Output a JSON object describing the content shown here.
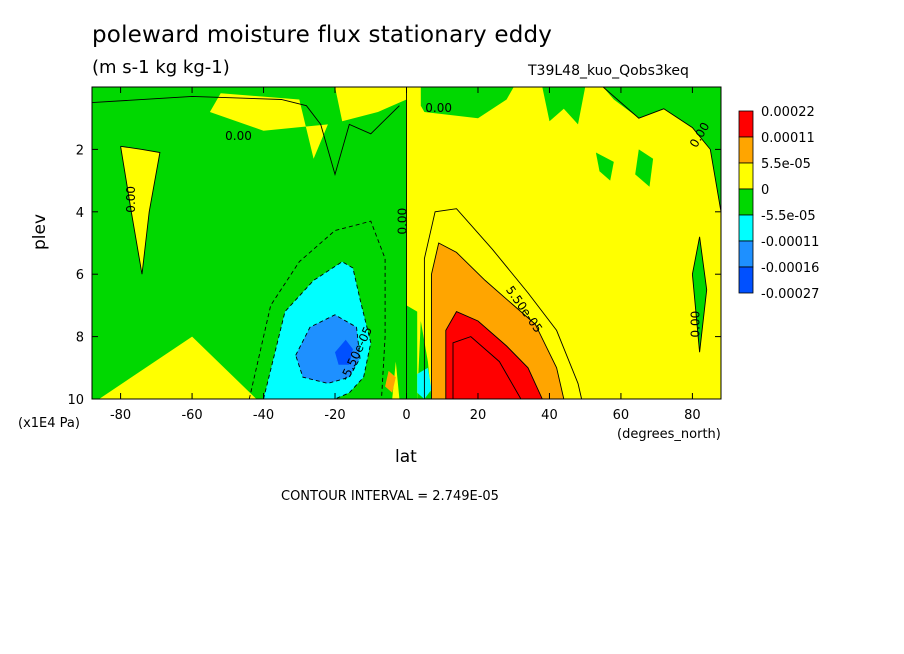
{
  "title": "poleward moisture flux stationary eddy",
  "units": "(m s-1 kg kg-1)",
  "run_name": "T39L48_kuo_Qobs3keq",
  "contour_interval": "CONTOUR INTERVAL = 2.749E-05",
  "chart_data": {
    "type": "heatmap",
    "title": "poleward moisture flux stationary eddy",
    "xlabel": "lat",
    "ylabel": "plev",
    "x_units": "(degrees_north)",
    "y_units": "(x1E4 Pa)",
    "xlim": [
      -88,
      88
    ],
    "ylim": [
      10,
      0
    ],
    "x_ticks": [
      -80,
      -60,
      -40,
      -20,
      0,
      20,
      40,
      60,
      80
    ],
    "x_tick_labels": [
      "-80",
      "-60",
      "-40",
      "-20",
      "0",
      "20",
      "40",
      "60",
      "80"
    ],
    "y_ticks": [
      2,
      4,
      6,
      8,
      10
    ],
    "y_tick_labels": [
      "2",
      "4",
      "6",
      "8",
      "10"
    ],
    "colorbar": {
      "labels": [
        "0.00022",
        "0.00011",
        "5.5e-05",
        "0",
        "-5.5e-05",
        "-0.00011",
        "-0.00016",
        "-0.00027"
      ],
      "colors": [
        "#ff0000",
        "#ffa500",
        "#ffff00",
        "#00d800",
        "#00ffff",
        "#1e90ff",
        "#0050ff"
      ]
    },
    "contour_labels": [
      {
        "text": "0.00",
        "lat": -47,
        "plev": 1.7,
        "angle": 0
      },
      {
        "text": "0.00",
        "lat": 9,
        "plev": 0.8,
        "angle": 0
      },
      {
        "text": "0.00",
        "lat": -76,
        "plev": 3.6,
        "angle": -90
      },
      {
        "text": "0.00",
        "lat": 0,
        "plev": 4.3,
        "angle": -90
      },
      {
        "text": "0.00",
        "lat": 83,
        "plev": 1.6,
        "angle": -60
      },
      {
        "text": "0.00",
        "lat": 82,
        "plev": 7.6,
        "angle": -90
      },
      {
        "text": "5.50e-05",
        "lat": 32,
        "plev": 7.2,
        "angle": 55
      },
      {
        "text": "-5.50e-05",
        "lat": -13,
        "plev": 8.6,
        "angle": -65
      }
    ],
    "regions": [
      {
        "level": "-5.5e-05 to 0",
        "color": "#00d800",
        "area": "mid-troposphere southern hemisphere"
      },
      {
        "level": "0 to 5.5e-05",
        "color": "#ffff00",
        "area": "background"
      },
      {
        "level": "5.5e-05 to 0.00011",
        "color": "#ffa500",
        "lat_range": [
          6,
          40
        ],
        "plev_range": [
          5,
          10
        ]
      },
      {
        "level": "0.00011 to 0.00022",
        "color": "#ff0000",
        "lat_range": [
          10,
          38
        ],
        "plev_range": [
          7.2,
          10
        ]
      },
      {
        "level": "-0.00011 to -5.5e-05",
        "color": "#00ffff",
        "lat_range": [
          -35,
          -10
        ],
        "plev_range": [
          5.5,
          10
        ]
      },
      {
        "level": "-0.00016 to -0.00011",
        "color": "#1e90ff",
        "lat_range": [
          -28,
          -12
        ],
        "plev_range": [
          7.3,
          9.5
        ]
      },
      {
        "level": "-0.00027 to -0.00016",
        "color": "#0050ff",
        "lat_range": [
          -20,
          -15
        ],
        "plev_range": [
          8.2,
          8.9
        ]
      }
    ]
  }
}
